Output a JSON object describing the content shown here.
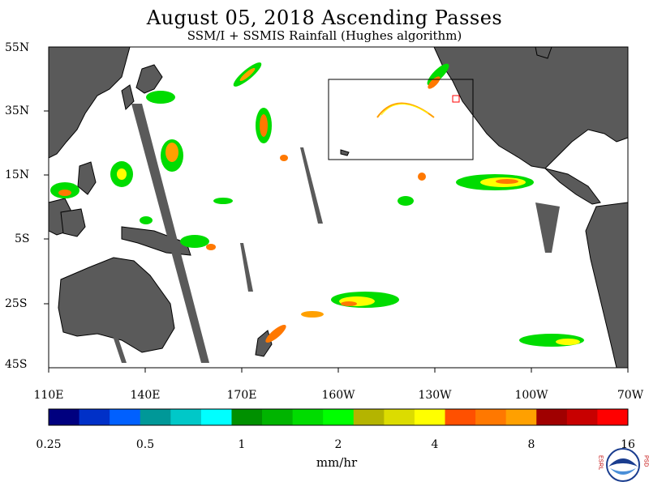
{
  "title": "August 05, 2018  Ascending Passes",
  "subtitle": "SSM/I + SSMIS Rainfall (Hughes algorithm)",
  "map": {
    "lat_labels": [
      "55N",
      "35N",
      "15N",
      "5S",
      "25S",
      "45S"
    ],
    "lon_labels": [
      "110E",
      "140E",
      "170E",
      "160W",
      "130W",
      "100W",
      "70W"
    ]
  },
  "legend": {
    "tick_labels": [
      "0.25",
      "0.5",
      "1",
      "2",
      "4",
      "8",
      "16"
    ],
    "units": "mm/hr",
    "colors": [
      "#00007f",
      "#0030c8",
      "#0060ff",
      "#009898",
      "#00c8c8",
      "#00ffff",
      "#009000",
      "#00b400",
      "#00dc00",
      "#00ff00",
      "#b4b400",
      "#dcdc00",
      "#ffff00",
      "#ff5000",
      "#ff7800",
      "#ffa000",
      "#a00000",
      "#c80000",
      "#ff0000"
    ]
  },
  "logo": {
    "left_letters": "ESRL",
    "right_letters": "PSD",
    "center_text": "NOAA"
  },
  "colors": {
    "land": "#5a5a5a",
    "light_rain": "#00dc00",
    "moderate_rain": "#ffff00",
    "heavy_rain": "#ff7800"
  }
}
